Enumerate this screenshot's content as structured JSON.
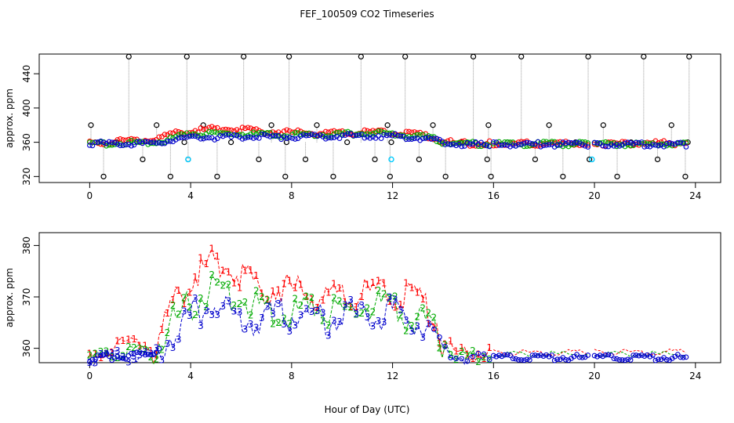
{
  "chart_data": [
    {
      "type": "scatter",
      "title": "FEF_100509  CO2 Timeseries",
      "xlabel": "",
      "ylabel": "approx. ppm",
      "xlim": [
        -2,
        25
      ],
      "ylim": [
        313,
        463
      ],
      "x_ticks": [
        0,
        4,
        8,
        12,
        16,
        20,
        24
      ],
      "y_ticks": [
        320,
        360,
        400,
        440
      ],
      "x_tick_labels": [
        "0",
        "4",
        "8",
        "12",
        "16",
        "20",
        "24"
      ],
      "y_tick_labels": [
        "320",
        "360",
        "400",
        "440"
      ],
      "colors": {
        "ch1": "#ff0000",
        "ch2": "#00aa00",
        "ch3": "#0000cc",
        "cal": "#00ccff",
        "spike": "#000000",
        "link": "#999999"
      },
      "segments": [
        {
          "name": "seg1",
          "x0": 0.0,
          "x1": 15.9,
          "ch3": [
            [
              0,
              359
            ],
            [
              0.5,
              360
            ],
            [
              1.0,
              359.5
            ],
            [
              1.5,
              360
            ],
            [
              2.0,
              360
            ],
            [
              2.5,
              360
            ],
            [
              3.0,
              362
            ],
            [
              3.5,
              366
            ],
            [
              4.0,
              368
            ],
            [
              4.5,
              368
            ],
            [
              5.0,
              367
            ],
            [
              6.0,
              368
            ],
            [
              7.0,
              368
            ],
            [
              8.0,
              368
            ],
            [
              9.0,
              368
            ],
            [
              10.0,
              369
            ],
            [
              11.0,
              369
            ],
            [
              12.0,
              369
            ],
            [
              13.0,
              367
            ],
            [
              13.5,
              365
            ],
            [
              14.0,
              362
            ],
            [
              14.5,
              360
            ],
            [
              15.0,
              359
            ],
            [
              15.9,
              359
            ]
          ],
          "ch2": [
            [
              0,
              359.5
            ],
            [
              1.0,
              360.5
            ],
            [
              2.0,
              361
            ],
            [
              3.0,
              364
            ],
            [
              3.5,
              368
            ],
            [
              4.0,
              371
            ],
            [
              5.0,
              372
            ],
            [
              6.0,
              371
            ],
            [
              7.0,
              370
            ],
            [
              8.0,
              370
            ],
            [
              9.0,
              371
            ],
            [
              10.0,
              371
            ],
            [
              11.0,
              372
            ],
            [
              12.0,
              371
            ],
            [
              13.0,
              369
            ],
            [
              13.5,
              366
            ],
            [
              14.0,
              362
            ],
            [
              14.5,
              360
            ],
            [
              15.0,
              359.5
            ],
            [
              15.9,
              359.5
            ]
          ],
          "ch1": [
            [
              0,
              360
            ],
            [
              1.0,
              362
            ],
            [
              1.5,
              364
            ],
            [
              2.0,
              364
            ],
            [
              3.0,
              368
            ],
            [
              3.5,
              373
            ],
            [
              4.0,
              375
            ],
            [
              4.5,
              376
            ],
            [
              5.0,
              378
            ],
            [
              6.0,
              377
            ],
            [
              7.0,
              374
            ],
            [
              8.0,
              373
            ],
            [
              9.0,
              372
            ],
            [
              10.0,
              372
            ],
            [
              11.0,
              373
            ],
            [
              12.0,
              373
            ],
            [
              13.0,
              371
            ],
            [
              13.5,
              368
            ],
            [
              14.0,
              363
            ],
            [
              14.5,
              360.5
            ],
            [
              15.0,
              360
            ],
            [
              15.9,
              360
            ]
          ]
        },
        {
          "name": "seg2",
          "x0": 16.0,
          "x1": 19.8,
          "ch3": [
            [
              16,
              359
            ],
            [
              19.8,
              359
            ]
          ],
          "ch2": [
            [
              16,
              359.5
            ],
            [
              19.8,
              359.5
            ]
          ],
          "ch1": [
            [
              16,
              360
            ],
            [
              19.8,
              360
            ]
          ]
        },
        {
          "name": "seg3",
          "x0": 20.0,
          "x1": 23.7,
          "ch3": [
            [
              20,
              359
            ],
            [
              23.7,
              359
            ]
          ],
          "ch2": [
            [
              20,
              359.5
            ],
            [
              23.7,
              359.5
            ]
          ],
          "ch1": [
            [
              20,
              360
            ],
            [
              23.5,
              360.5
            ],
            [
              23.7,
              361
            ]
          ]
        }
      ],
      "spikes": [
        0.05,
        0.55,
        1.05,
        1.55,
        2.1,
        2.65,
        3.2,
        3.75,
        3.85,
        3.9,
        4.5,
        5.05,
        5.6,
        6.1,
        6.7,
        7.2,
        7.75,
        7.8,
        7.9,
        8.55,
        9.0,
        9.65,
        10.2,
        10.75,
        11.3,
        11.8,
        11.9,
        11.95,
        12.5,
        13.05,
        13.6,
        14.1,
        14.7,
        15.2,
        15.75,
        15.8,
        15.9,
        16.55,
        17.1,
        17.65,
        18.2,
        18.75,
        19.25,
        19.75,
        19.8,
        20.35,
        20.9,
        21.45,
        21.95,
        22.5,
        23.05,
        23.6,
        23.7,
        23.75
      ],
      "spike_levels": [
        320,
        340,
        360,
        380,
        460
      ],
      "cal_points": [
        [
          3.9,
          340
        ],
        [
          11.95,
          340
        ],
        [
          19.9,
          340
        ]
      ]
    },
    {
      "type": "line",
      "title": "",
      "xlabel": "Hour of Day (UTC)",
      "ylabel": "approx. ppm",
      "xlim": [
        -2,
        25
      ],
      "ylim": [
        357.2,
        382.5
      ],
      "x_ticks": [
        0,
        4,
        8,
        12,
        16,
        20,
        24
      ],
      "y_ticks": [
        360,
        370,
        380
      ],
      "x_tick_labels": [
        "0",
        "4",
        "8",
        "12",
        "16",
        "20",
        "24"
      ],
      "y_tick_labels": [
        "360",
        "370",
        "380"
      ],
      "series": [
        {
          "name": "1",
          "color": "#ff0000",
          "label_char": "1",
          "points": [
            [
              0,
              358.5
            ],
            [
              0.5,
              359.5
            ],
            [
              1.0,
              361
            ],
            [
              1.5,
              362
            ],
            [
              2.0,
              362
            ],
            [
              2.5,
              361
            ],
            [
              3.0,
              366
            ],
            [
              3.5,
              372
            ],
            [
              4.0,
              375
            ],
            [
              4.5,
              377
            ],
            [
              5.0,
              379
            ],
            [
              5.5,
              378
            ],
            [
              6.0,
              376
            ],
            [
              6.5,
              374
            ],
            [
              7.0,
              373
            ],
            [
              7.5,
              373
            ],
            [
              8.0,
              373
            ],
            [
              8.5,
              372
            ],
            [
              9.0,
              372
            ],
            [
              9.5,
              371
            ],
            [
              10.0,
              371
            ],
            [
              10.5,
              372
            ],
            [
              11.0,
              372
            ],
            [
              11.5,
              372
            ],
            [
              12.0,
              372
            ],
            [
              12.5,
              372
            ],
            [
              13.0,
              371
            ],
            [
              13.5,
              369
            ],
            [
              13.8,
              366
            ],
            [
              14.0,
              362
            ],
            [
              14.5,
              360
            ],
            [
              15.0,
              359.5
            ],
            [
              15.9,
              359.5
            ]
          ]
        },
        {
          "name": "2",
          "color": "#00aa00",
          "label_char": "2",
          "points": [
            [
              0,
              358.5
            ],
            [
              0.5,
              359
            ],
            [
              1.0,
              359.5
            ],
            [
              1.5,
              360
            ],
            [
              2.0,
              360
            ],
            [
              2.5,
              360
            ],
            [
              3.0,
              365
            ],
            [
              3.5,
              368
            ],
            [
              4.0,
              370
            ],
            [
              4.5,
              372
            ],
            [
              5.0,
              373
            ],
            [
              5.5,
              372
            ],
            [
              6.0,
              372
            ],
            [
              6.5,
              370
            ],
            [
              7.0,
              370
            ],
            [
              7.5,
              369
            ],
            [
              8.0,
              369
            ],
            [
              8.5,
              369
            ],
            [
              9.0,
              369
            ],
            [
              9.5,
              369
            ],
            [
              10.0,
              369
            ],
            [
              10.5,
              369
            ],
            [
              11.0,
              370
            ],
            [
              11.5,
              370
            ],
            [
              12.0,
              369
            ],
            [
              12.5,
              368
            ],
            [
              13.0,
              367
            ],
            [
              13.5,
              367
            ],
            [
              13.8,
              365
            ],
            [
              14.0,
              362
            ],
            [
              14.5,
              359.5
            ],
            [
              15.0,
              359
            ],
            [
              15.9,
              359
            ]
          ]
        },
        {
          "name": "3",
          "color": "#0000cc",
          "label_char": "3",
          "points": [
            [
              0,
              358
            ],
            [
              0.5,
              358.5
            ],
            [
              1.0,
              359
            ],
            [
              1.5,
              359
            ],
            [
              2.0,
              359
            ],
            [
              2.5,
              359
            ],
            [
              3.0,
              363
            ],
            [
              3.5,
              366
            ],
            [
              4.0,
              368
            ],
            [
              4.5,
              369
            ],
            [
              5.0,
              370
            ],
            [
              5.5,
              368
            ],
            [
              6.0,
              367
            ],
            [
              6.5,
              367
            ],
            [
              7.0,
              368
            ],
            [
              7.5,
              368
            ],
            [
              8.0,
              368
            ],
            [
              8.5,
              368
            ],
            [
              9.0,
              367
            ],
            [
              9.5,
              367
            ],
            [
              10.0,
              368
            ],
            [
              10.5,
              368
            ],
            [
              11.0,
              368
            ],
            [
              11.5,
              368
            ],
            [
              12.0,
              369
            ],
            [
              12.5,
              367
            ],
            [
              13.0,
              366
            ],
            [
              13.5,
              366
            ],
            [
              13.8,
              364
            ],
            [
              14.0,
              361
            ],
            [
              14.5,
              359
            ],
            [
              15.0,
              358.5
            ],
            [
              15.9,
              358.5
            ]
          ]
        }
      ],
      "flat_segments": [
        {
          "x0": 16.0,
          "x1": 19.8,
          "values": {
            "1": 359.5,
            "2": 359.2,
            "3": 358.5
          }
        },
        {
          "x0": 20.0,
          "x1": 23.7,
          "values": {
            "1": 359.6,
            "2": 359.2,
            "3": 358.5
          }
        }
      ]
    }
  ]
}
